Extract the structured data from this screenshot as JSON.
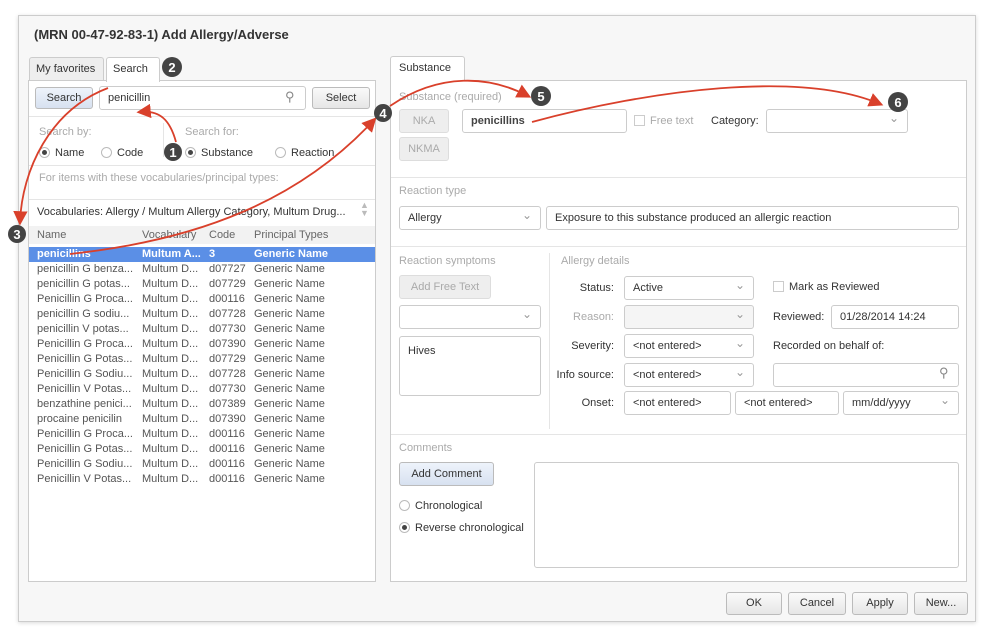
{
  "title": "(MRN 00-47-92-83-1) Add Allergy/Adverse",
  "left_tabs": [
    "My favorites",
    "Search"
  ],
  "search": {
    "button": "Search",
    "value": "penicillin",
    "select": "Select",
    "search_by_label": "Search by:",
    "search_by": [
      "Name",
      "Code"
    ],
    "search_for_label": "Search for:",
    "search_for": [
      "Substance",
      "Reaction"
    ],
    "vocab_label": "For items with these vocabularies/principal types:",
    "vocab_value": "Vocabularies: Allergy / Multum Allergy Category, Multum Drug..."
  },
  "table": {
    "headers": [
      "Name",
      "Vocabulary",
      "Code",
      "Principal Types"
    ],
    "rows": [
      [
        "penicillins",
        "Multum A...",
        "3",
        "Generic Name"
      ],
      [
        "penicillin G benza...",
        "Multum D...",
        "d07727",
        "Generic Name"
      ],
      [
        "penicillin G potas...",
        "Multum D...",
        "d07729",
        "Generic Name"
      ],
      [
        "Penicillin G Proca...",
        "Multum D...",
        "d00116",
        "Generic Name"
      ],
      [
        "penicillin G sodiu...",
        "Multum D...",
        "d07728",
        "Generic Name"
      ],
      [
        "penicillin V potas...",
        "Multum D...",
        "d07730",
        "Generic Name"
      ],
      [
        "Penicillin G Proca...",
        "Multum D...",
        "d07390",
        "Generic Name"
      ],
      [
        "Penicillin G Potas...",
        "Multum D...",
        "d07729",
        "Generic Name"
      ],
      [
        "Penicillin G Sodiu...",
        "Multum D...",
        "d07728",
        "Generic Name"
      ],
      [
        "Penicillin V Potas...",
        "Multum D...",
        "d07730",
        "Generic Name"
      ],
      [
        "benzathine penici...",
        "Multum D...",
        "d07389",
        "Generic Name"
      ],
      [
        "procaine penicilin",
        "Multum D...",
        "d07390",
        "Generic Name"
      ],
      [
        "Penicillin G Proca...",
        "Multum D...",
        "d00116",
        "Generic Name"
      ],
      [
        "Penicillin G Potas...",
        "Multum D...",
        "d00116",
        "Generic Name"
      ],
      [
        "Penicillin G Sodiu...",
        "Multum D...",
        "d00116",
        "Generic Name"
      ],
      [
        "Penicillin V Potas...",
        "Multum D...",
        "d00116",
        "Generic Name"
      ]
    ]
  },
  "right_tab": "Substance",
  "substance": {
    "label": "Substance (required)",
    "nka": "NKA",
    "nkma": "NKMA",
    "value": "penicillins",
    "free_text": "Free text",
    "category_label": "Category:",
    "category_value": ""
  },
  "reaction": {
    "label": "Reaction type",
    "type": "Allergy",
    "description": "Exposure to this substance produced an allergic reaction"
  },
  "symptoms": {
    "label": "Reaction symptoms",
    "add_free_text": "Add Free Text",
    "items": [
      "Hives"
    ]
  },
  "details": {
    "label": "Allergy details",
    "status_label": "Status:",
    "status": "Active",
    "reason_label": "Reason:",
    "severity_label": "Severity:",
    "severity": "<not entered>",
    "info_label": "Info source:",
    "info": "<not entered>",
    "onset_label": "Onset:",
    "onset1": "<not entered>",
    "onset2": "<not entered>",
    "onset_format": "mm/dd/yyyy",
    "mark_reviewed": "Mark as Reviewed",
    "reviewed_label": "Reviewed:",
    "reviewed": "01/28/2014 14:24",
    "behalf_label": "Recorded on behalf of:"
  },
  "comments": {
    "label": "Comments",
    "add": "Add Comment",
    "chronological": "Chronological",
    "reverse": "Reverse chronological"
  },
  "footer": {
    "ok": "OK",
    "cancel": "Cancel",
    "apply": "Apply",
    "new": "New..."
  },
  "callouts": [
    "1",
    "2",
    "3",
    "4",
    "5",
    "6"
  ],
  "colors": {
    "selection": "#5b8fe6",
    "arrow": "#d9402b",
    "callout": "#444444"
  }
}
